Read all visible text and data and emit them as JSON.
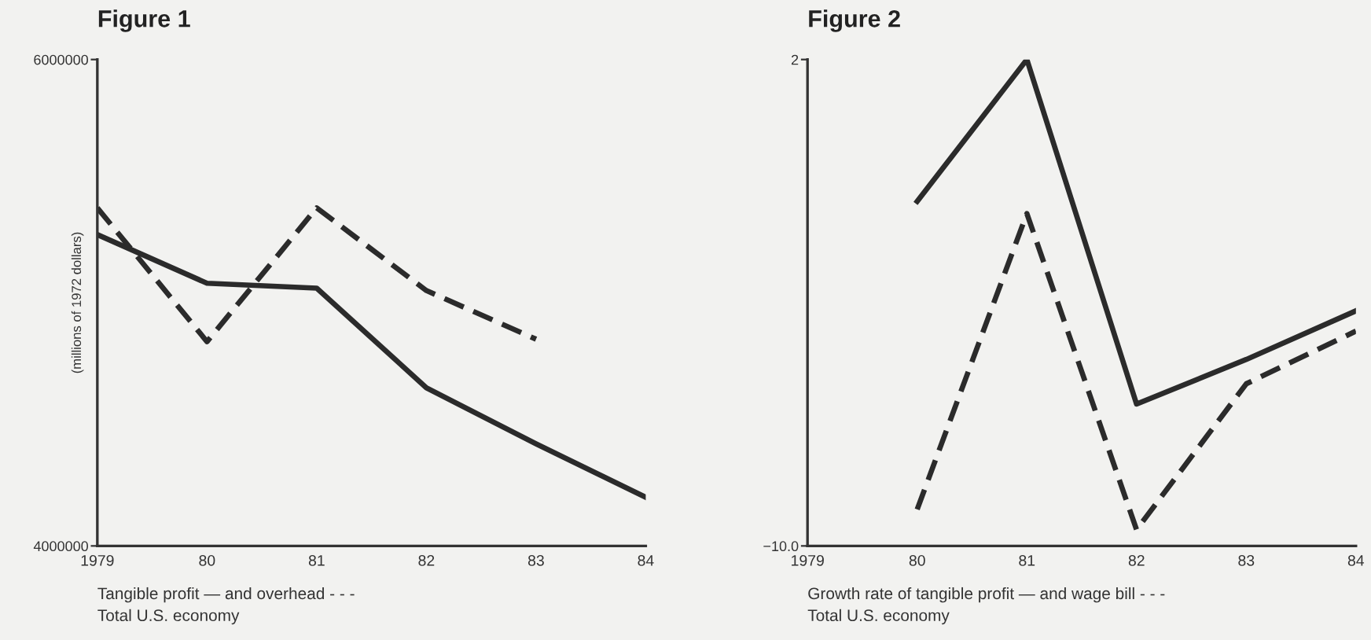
{
  "chart_data": [
    {
      "type": "line",
      "title": "Figure 1",
      "ylabel": "(millions of 1972 dollars)",
      "x": [
        1979,
        1980,
        1981,
        1982,
        1983,
        1984
      ],
      "xlim": [
        1979,
        1984
      ],
      "xticks": [
        {
          "value": 1979,
          "label": "1979"
        },
        {
          "value": 1980,
          "label": "80"
        },
        {
          "value": 1981,
          "label": "81"
        },
        {
          "value": 1982,
          "label": "82"
        },
        {
          "value": 1983,
          "label": "83"
        },
        {
          "value": 1984,
          "label": "84"
        }
      ],
      "ylim": [
        4000000,
        6000000
      ],
      "yticks": [
        4000000,
        6000000
      ],
      "series": [
        {
          "color": "#2b2b2b",
          "line_style": "solid",
          "values": [
            5280000,
            5080000,
            5060000,
            4650000,
            4420000,
            4200000
          ]
        },
        {
          "color": "#2b2b2b",
          "line_style": "dashed",
          "values": [
            5390000,
            4840000,
            5390000,
            5050000,
            4850000,
            null
          ]
        }
      ],
      "annotations": [
        "Tangible profit — and overhead - - -",
        "Total U.S. economy"
      ],
      "grid": false,
      "legend": false
    },
    {
      "type": "line",
      "title": "Figure 2",
      "x": [
        1980,
        1981,
        1982,
        1983,
        1984
      ],
      "xlim": [
        1979,
        1984
      ],
      "xticks": [
        {
          "value": 1979,
          "label": "1979"
        },
        {
          "value": 1980,
          "label": "80"
        },
        {
          "value": 1981,
          "label": "81"
        },
        {
          "value": 1982,
          "label": "82"
        },
        {
          "value": 1983,
          "label": "83"
        },
        {
          "value": 1984,
          "label": "84"
        }
      ],
      "ylim": [
        -10.0,
        2
      ],
      "yticks": [
        {
          "value": -10.0,
          "label": "−10.0"
        },
        2
      ],
      "series": [
        {
          "color": "#2b2b2b",
          "line_style": "solid",
          "values": [
            -1.5,
            2.0,
            -6.5,
            -5.4,
            -4.2
          ]
        },
        {
          "color": "#2b2b2b",
          "line_style": "dashed",
          "values": [
            -9.1,
            -1.8,
            -9.6,
            -6.0,
            -4.7
          ]
        }
      ],
      "annotations": [
        "Growth rate of tangible profit — and wage bill - - -",
        "Total U.S. economy"
      ],
      "grid": false,
      "legend": false
    }
  ]
}
